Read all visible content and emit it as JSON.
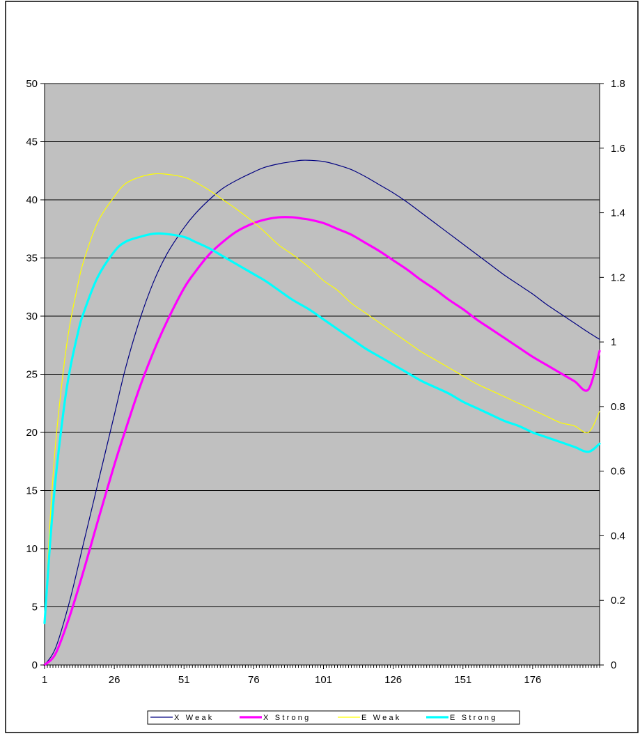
{
  "colors": {
    "plot_background": "#c0c0c0",
    "gridline": "#000000",
    "frame": "#000000",
    "page_background": "#ffffff"
  },
  "chart_data": {
    "type": "line",
    "title": "",
    "xlabel": "",
    "ylabel_left": "",
    "ylabel_right": "",
    "grid": "horizontal major gridlines on",
    "legend_position": "bottom",
    "x_range": [
      1,
      200
    ],
    "x_tick_labels": [
      "1",
      "26",
      "51",
      "76",
      "101",
      "126",
      "151",
      "176"
    ],
    "y_left_range": [
      0,
      50
    ],
    "y_left_tick_labels": [
      "0",
      "5",
      "10",
      "15",
      "20",
      "25",
      "30",
      "35",
      "40",
      "45",
      "50"
    ],
    "y_right_range": [
      0,
      1.8
    ],
    "y_right_tick_labels": [
      "0",
      "0.2",
      "0.4",
      "0.6",
      "0.8",
      "1",
      "1.2",
      "1.4",
      "1.6",
      "1.8"
    ],
    "series": [
      {
        "name": "X Weak",
        "axis": "left",
        "color": "#000080",
        "line_width": 1.2,
        "x": [
          1,
          5,
          10,
          15,
          20,
          26,
          30,
          35,
          40,
          45,
          51,
          55,
          60,
          65,
          70,
          76,
          80,
          85,
          90,
          93,
          96,
          101,
          106,
          111,
          116,
          121,
          126,
          131,
          136,
          141,
          146,
          151,
          156,
          161,
          166,
          171,
          176,
          181,
          186,
          191,
          196,
          200
        ],
        "values": [
          0,
          1.5,
          5.5,
          10.5,
          15.5,
          21.5,
          25.5,
          29.6,
          32.9,
          35.4,
          37.6,
          38.8,
          40.0,
          41.0,
          41.7,
          42.4,
          42.8,
          43.1,
          43.3,
          43.4,
          43.4,
          43.3,
          43.0,
          42.6,
          42.0,
          41.3,
          40.6,
          39.8,
          38.9,
          38.0,
          37.1,
          36.2,
          35.3,
          34.4,
          33.5,
          32.7,
          31.9,
          31.0,
          30.2,
          29.4,
          28.6,
          28.0
        ]
      },
      {
        "name": "X Strong",
        "axis": "left",
        "color": "#ff00ff",
        "line_width": 3.2,
        "x": [
          1,
          5,
          10,
          15,
          20,
          26,
          30,
          35,
          40,
          45,
          51,
          55,
          60,
          65,
          70,
          76,
          80,
          85,
          90,
          93,
          96,
          101,
          106,
          111,
          116,
          121,
          126,
          131,
          136,
          141,
          146,
          151,
          156,
          161,
          166,
          171,
          176,
          181,
          186,
          191,
          196,
          200
        ],
        "values": [
          0,
          1.0,
          4.2,
          8.1,
          12.3,
          17.2,
          20.2,
          23.8,
          26.9,
          29.6,
          32.4,
          33.8,
          35.3,
          36.4,
          37.3,
          38.0,
          38.3,
          38.5,
          38.5,
          38.4,
          38.3,
          38.0,
          37.5,
          37.0,
          36.3,
          35.6,
          34.8,
          34.0,
          33.1,
          32.3,
          31.4,
          30.6,
          29.7,
          28.9,
          28.1,
          27.3,
          26.5,
          25.8,
          25.1,
          24.4,
          23.7,
          27.0
        ]
      },
      {
        "name": "E Weak",
        "axis": "right",
        "color": "#ffff00",
        "line_width": 1.2,
        "x": [
          1,
          3,
          5,
          8,
          10,
          13,
          15,
          20,
          26,
          30,
          35,
          40,
          44,
          51,
          55,
          60,
          65,
          70,
          76,
          80,
          85,
          90,
          96,
          101,
          106,
          111,
          116,
          121,
          126,
          131,
          136,
          141,
          146,
          151,
          156,
          161,
          166,
          171,
          176,
          181,
          186,
          191,
          196,
          200
        ],
        "values": [
          0.13,
          0.45,
          0.69,
          0.93,
          1.05,
          1.18,
          1.25,
          1.37,
          1.45,
          1.49,
          1.51,
          1.52,
          1.52,
          1.51,
          1.495,
          1.47,
          1.44,
          1.41,
          1.37,
          1.34,
          1.3,
          1.27,
          1.23,
          1.19,
          1.16,
          1.12,
          1.09,
          1.06,
          1.03,
          1.0,
          0.97,
          0.945,
          0.92,
          0.895,
          0.87,
          0.85,
          0.83,
          0.81,
          0.79,
          0.77,
          0.75,
          0.74,
          0.72,
          0.785
        ]
      },
      {
        "name": "E Strong",
        "axis": "right",
        "color": "#00ffff",
        "line_width": 3.2,
        "x": [
          1,
          3,
          5,
          8,
          10,
          13,
          15,
          20,
          26,
          30,
          35,
          40,
          44,
          51,
          55,
          60,
          65,
          70,
          76,
          80,
          85,
          90,
          96,
          101,
          106,
          111,
          116,
          121,
          126,
          131,
          136,
          141,
          146,
          151,
          156,
          161,
          166,
          171,
          176,
          181,
          186,
          191,
          196,
          200
        ],
        "values": [
          0.13,
          0.38,
          0.58,
          0.8,
          0.91,
          1.03,
          1.09,
          1.2,
          1.28,
          1.31,
          1.325,
          1.335,
          1.335,
          1.325,
          1.31,
          1.29,
          1.265,
          1.24,
          1.21,
          1.19,
          1.16,
          1.13,
          1.1,
          1.07,
          1.04,
          1.01,
          0.98,
          0.955,
          0.93,
          0.905,
          0.88,
          0.86,
          0.84,
          0.815,
          0.795,
          0.775,
          0.755,
          0.74,
          0.72,
          0.705,
          0.69,
          0.675,
          0.66,
          0.685
        ]
      }
    ]
  }
}
